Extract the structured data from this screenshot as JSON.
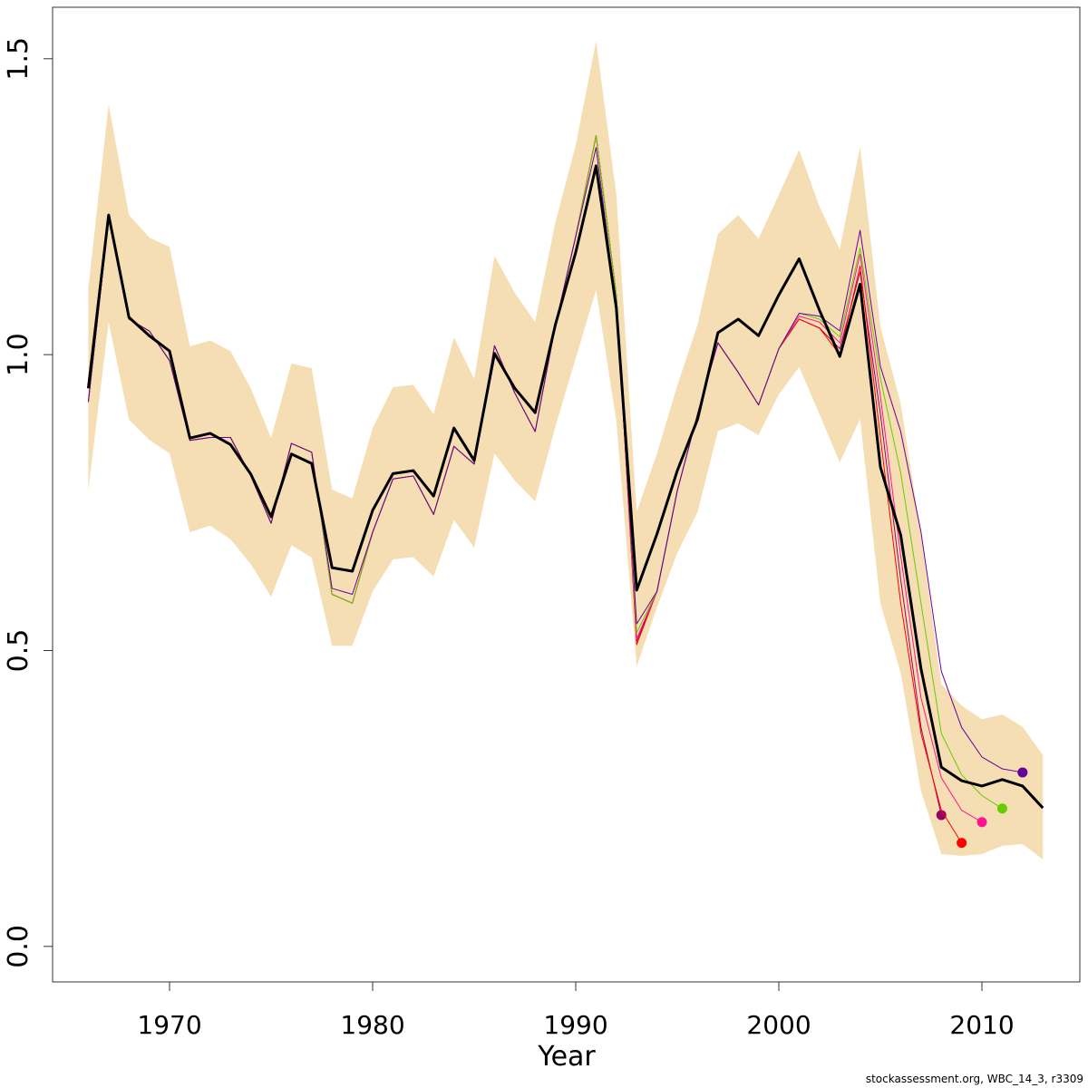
{
  "chart_data": {
    "type": "line",
    "xlabel": "Year",
    "footer": "stockassessment.org, WBC_14_3, r3309",
    "xlim": [
      1964.24,
      2014.82
    ],
    "ylim": [
      -0.06,
      1.587
    ],
    "xticks": [
      1970,
      1980,
      1990,
      2000,
      2010
    ],
    "yticks": [
      {
        "value": 0,
        "label": "0.0"
      },
      {
        "value": 0.5,
        "label": "0.5"
      },
      {
        "value": 1,
        "label": "1.0"
      },
      {
        "value": 1.5,
        "label": "1.5"
      }
    ],
    "x": [
      1966,
      1967,
      1968,
      1969,
      1970,
      1971,
      1972,
      1973,
      1974,
      1975,
      1976,
      1977,
      1978,
      1979,
      1980,
      1981,
      1982,
      1983,
      1984,
      1985,
      1986,
      1987,
      1988,
      1989,
      1990,
      1991,
      1992,
      1993,
      1994,
      1995,
      1996,
      1997,
      1998,
      1999,
      2000,
      2001,
      2002,
      2003,
      2004,
      2005,
      2006,
      2007,
      2008,
      2009,
      2010,
      2011,
      2012,
      2013
    ],
    "band": {
      "color": "#f5deb3",
      "upper": [
        1.112,
        1.423,
        1.236,
        1.198,
        1.182,
        1.014,
        1.024,
        1.006,
        0.943,
        0.859,
        0.985,
        0.977,
        0.772,
        0.757,
        0.876,
        0.945,
        0.949,
        0.899,
        1.029,
        0.959,
        1.167,
        1.104,
        1.055,
        1.224,
        1.354,
        1.53,
        1.27,
        0.734,
        0.833,
        0.948,
        1.051,
        1.204,
        1.236,
        1.196,
        1.27,
        1.346,
        1.25,
        1.178,
        1.351,
        1.047,
        0.917,
        0.695,
        0.443,
        0.407,
        0.384,
        0.392,
        0.371,
        0.323
      ],
      "lower": [
        0.772,
        1.055,
        0.89,
        0.856,
        0.833,
        0.7,
        0.711,
        0.688,
        0.646,
        0.591,
        0.678,
        0.657,
        0.508,
        0.508,
        0.6,
        0.654,
        0.658,
        0.625,
        0.721,
        0.674,
        0.833,
        0.787,
        0.752,
        0.879,
        0.994,
        1.109,
        0.887,
        0.473,
        0.573,
        0.665,
        0.734,
        0.871,
        0.884,
        0.864,
        0.933,
        0.979,
        0.899,
        0.818,
        0.891,
        0.58,
        0.462,
        0.262,
        0.156,
        0.153,
        0.156,
        0.17,
        0.173,
        0.147
      ]
    },
    "series": [
      {
        "color": "#990066",
        "values": [
          0.92,
          1.23,
          1.06,
          1.04,
          0.99,
          0.855,
          0.86,
          0.86,
          0.795,
          0.715,
          0.85,
          0.835,
          0.595,
          0.58,
          0.7,
          0.79,
          0.795,
          0.73,
          0.845,
          0.815,
          1.015,
          0.935,
          0.87,
          1.05,
          1.2,
          1.37,
          1.1,
          0.515,
          0.6,
          0.77,
          0.9,
          1.02,
          0.97,
          0.915,
          1.01,
          1.06,
          1.045,
          1.01,
          1.14,
          0.9,
          0.62,
          0.37,
          0.222,
          null,
          null,
          null,
          null,
          null
        ]
      },
      {
        "color": "#ff0000",
        "values": [
          0.92,
          1.23,
          1.06,
          1.04,
          0.99,
          0.855,
          0.86,
          0.86,
          0.795,
          0.715,
          0.85,
          0.835,
          0.595,
          0.58,
          0.7,
          0.79,
          0.795,
          0.73,
          0.845,
          0.815,
          1.015,
          0.935,
          0.87,
          1.05,
          1.2,
          1.37,
          1.1,
          0.51,
          0.6,
          0.77,
          0.9,
          1.02,
          0.97,
          0.915,
          1.01,
          1.06,
          1.045,
          1.0,
          1.15,
          0.86,
          0.58,
          0.36,
          0.23,
          0.175,
          null,
          null,
          null,
          null
        ]
      },
      {
        "color": "#ff1493",
        "values": [
          0.92,
          1.23,
          1.06,
          1.04,
          0.99,
          0.855,
          0.86,
          0.86,
          0.795,
          0.715,
          0.85,
          0.835,
          0.595,
          0.58,
          0.7,
          0.79,
          0.795,
          0.73,
          0.845,
          0.815,
          1.015,
          0.935,
          0.87,
          1.05,
          1.2,
          1.37,
          1.1,
          0.52,
          0.6,
          0.77,
          0.9,
          1.02,
          0.97,
          0.915,
          1.01,
          1.065,
          1.055,
          1.02,
          1.17,
          0.93,
          0.66,
          0.42,
          0.285,
          0.23,
          0.21,
          null,
          null,
          null
        ]
      },
      {
        "color": "#66cc00",
        "values": [
          0.92,
          1.23,
          1.06,
          1.04,
          0.99,
          0.855,
          0.86,
          0.86,
          0.795,
          0.715,
          0.85,
          0.835,
          0.595,
          0.58,
          0.7,
          0.79,
          0.795,
          0.73,
          0.845,
          0.815,
          1.015,
          0.935,
          0.87,
          1.05,
          1.2,
          1.37,
          1.1,
          0.53,
          0.6,
          0.77,
          0.9,
          1.02,
          0.97,
          0.915,
          1.01,
          1.07,
          1.06,
          1.03,
          1.18,
          0.96,
          0.8,
          0.58,
          0.36,
          0.29,
          0.255,
          0.233,
          null,
          null
        ]
      },
      {
        "color": "#660099",
        "values": [
          0.92,
          1.23,
          1.06,
          1.04,
          0.99,
          0.855,
          0.86,
          0.86,
          0.795,
          0.715,
          0.85,
          0.835,
          0.605,
          0.595,
          0.7,
          0.79,
          0.795,
          0.73,
          0.845,
          0.815,
          1.015,
          0.935,
          0.87,
          1.05,
          1.2,
          1.35,
          1.08,
          0.545,
          0.6,
          0.77,
          0.9,
          1.02,
          0.97,
          0.915,
          1.01,
          1.07,
          1.065,
          1.04,
          1.21,
          0.98,
          0.87,
          0.7,
          0.465,
          0.37,
          0.32,
          0.3,
          0.294,
          null
        ]
      },
      {
        "color": "#000000",
        "values": [
          0.943,
          1.236,
          1.063,
          1.032,
          1.006,
          0.859,
          0.867,
          0.848,
          0.798,
          0.726,
          0.832,
          0.816,
          0.64,
          0.634,
          0.737,
          0.799,
          0.804,
          0.761,
          0.876,
          0.821,
          1.002,
          0.943,
          0.902,
          1.051,
          1.173,
          1.319,
          1.078,
          0.602,
          0.697,
          0.804,
          0.891,
          1.037,
          1.06,
          1.032,
          1.101,
          1.162,
          1.075,
          0.997,
          1.119,
          0.81,
          0.695,
          0.469,
          0.303,
          0.28,
          0.271,
          0.282,
          0.271,
          0.234
        ]
      }
    ]
  }
}
